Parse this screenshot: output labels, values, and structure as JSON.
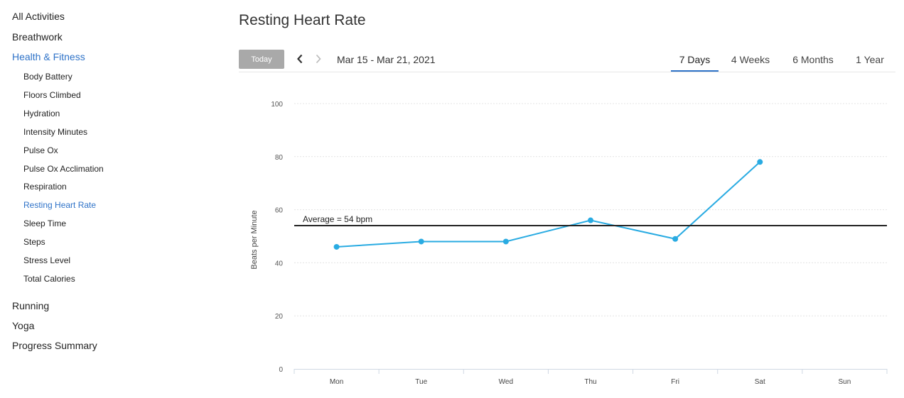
{
  "sidebar": {
    "top_items": [
      {
        "label": "All Activities"
      },
      {
        "label": "Breathwork"
      },
      {
        "label": "Health & Fitness",
        "active": true
      }
    ],
    "sub_items": [
      {
        "label": "Body Battery"
      },
      {
        "label": "Floors Climbed"
      },
      {
        "label": "Hydration"
      },
      {
        "label": "Intensity Minutes"
      },
      {
        "label": "Pulse Ox"
      },
      {
        "label": "Pulse Ox Acclimation"
      },
      {
        "label": "Respiration"
      },
      {
        "label": "Resting Heart Rate",
        "active": true
      },
      {
        "label": "Sleep Time"
      },
      {
        "label": "Steps"
      },
      {
        "label": "Stress Level"
      },
      {
        "label": "Total Calories"
      }
    ],
    "bottom_items": [
      {
        "label": "Running"
      },
      {
        "label": "Yoga"
      },
      {
        "label": "Progress Summary"
      }
    ]
  },
  "header": {
    "title": "Resting Heart Rate"
  },
  "toolbar": {
    "today_label": "Today",
    "prev_icon": "chevron-left-icon",
    "next_icon": "chevron-right-icon",
    "date_range": "Mar 15 - Mar 21, 2021",
    "tabs": [
      {
        "label": "7 Days",
        "active": true
      },
      {
        "label": "4 Weeks"
      },
      {
        "label": "6 Months"
      },
      {
        "label": "1 Year"
      }
    ]
  },
  "colors": {
    "accent": "#2f73c8",
    "series": "#29abe2",
    "average_line": "#222222",
    "today_button": "#a9a9a9"
  },
  "chart_data": {
    "type": "line",
    "ylabel": "Beats per Minute",
    "xlabel": "",
    "categories": [
      "Mon",
      "Tue",
      "Wed",
      "Thu",
      "Fri",
      "Sat",
      "Sun"
    ],
    "series": [
      {
        "values": [
          46,
          48,
          48,
          56,
          49,
          78,
          null
        ]
      }
    ],
    "yticks": [
      0,
      20,
      40,
      60,
      80,
      100
    ],
    "ylim": [
      0,
      100
    ],
    "grid": true,
    "average": {
      "value": 54,
      "label": "Average = 54 bpm"
    }
  }
}
